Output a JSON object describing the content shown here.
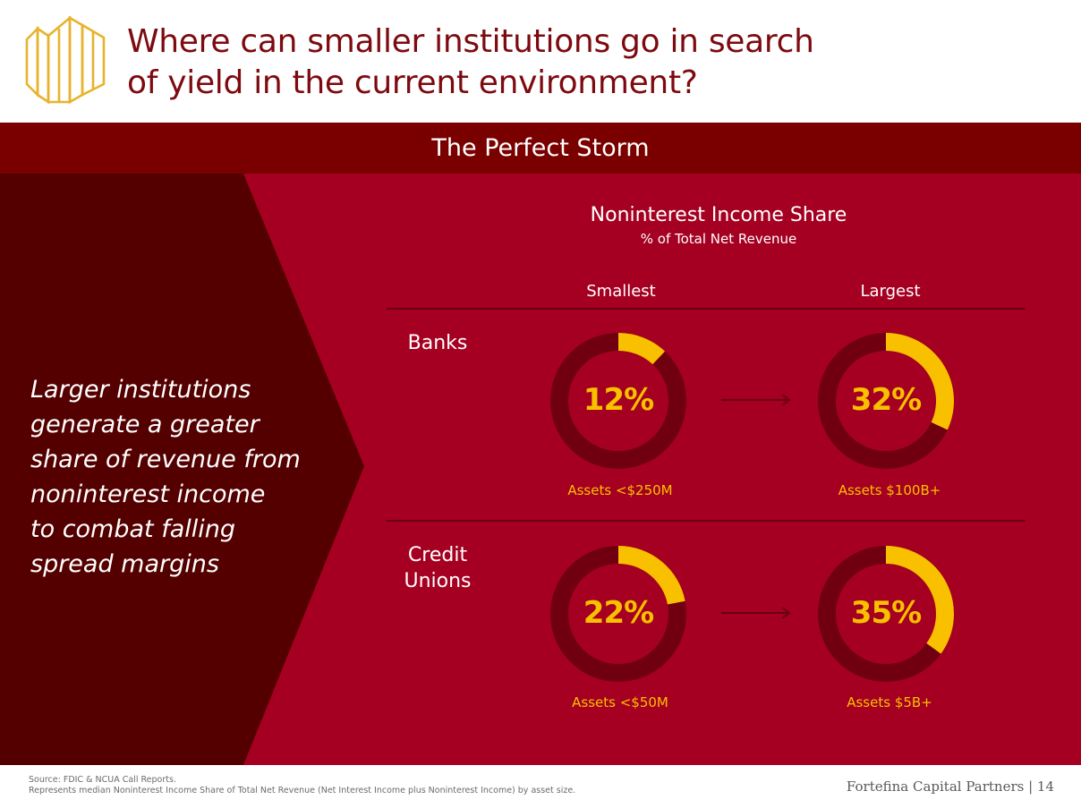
{
  "header": {
    "title_line1": "Where can smaller institutions go in search",
    "title_line2": "of yield in the current environment?"
  },
  "banner": {
    "text": "The Perfect Storm"
  },
  "lead": {
    "lines": [
      "Larger institutions",
      "generate a greater",
      "share of revenue from",
      "noninterest income",
      "to combat falling",
      "spread margins"
    ]
  },
  "colors": {
    "gold": "#f9c000",
    "ring": "#700010",
    "panel": "#a50021",
    "dark_panel": "#540000",
    "banner": "#7a0000",
    "title": "#7d0a0f"
  },
  "chart_data": {
    "type": "donut",
    "title": "Noninterest Income Share",
    "subtitle": "% of Total Net Revenue",
    "columns": [
      "Smallest",
      "Largest"
    ],
    "rows": [
      {
        "label": [
          "Banks"
        ],
        "cells": [
          {
            "value": 12,
            "label": "12%",
            "asset": "Assets <$250M"
          },
          {
            "value": 32,
            "label": "32%",
            "asset": "Assets $100B+"
          }
        ]
      },
      {
        "label": [
          "Credit",
          "Unions"
        ],
        "cells": [
          {
            "value": 22,
            "label": "22%",
            "asset": "Assets <$50M"
          },
          {
            "value": 35,
            "label": "35%",
            "asset": "Assets $5B+"
          }
        ]
      }
    ]
  },
  "footer": {
    "source_line1": "Source: FDIC & NCUA Call Reports.",
    "source_line2": "Represents median Noninterest Income Share of Total Net Revenue (Net Interest Income plus Noninterest Income) by asset size.",
    "brand": "Fortefina Capital Partners  |  14"
  }
}
